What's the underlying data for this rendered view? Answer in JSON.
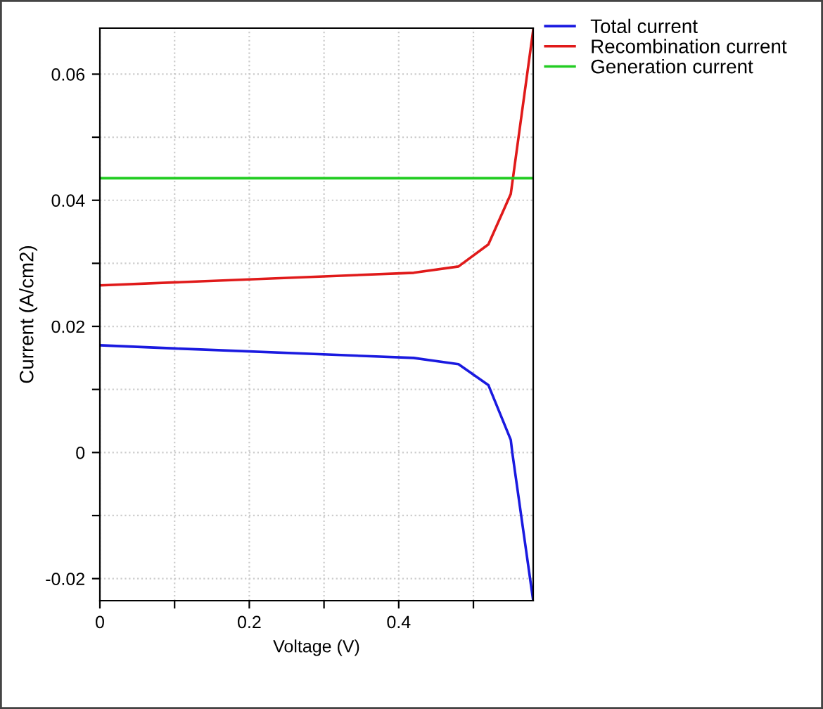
{
  "chart_data": {
    "type": "line",
    "xlabel": "Voltage (V)",
    "ylabel": "Current (A/cm2)",
    "xlim": [
      0,
      0.58
    ],
    "ylim": [
      -0.0235,
      0.0673
    ],
    "xticks": [
      0,
      {
        "value": 0.1,
        "label": null
      },
      0.2,
      {
        "value": 0.3,
        "label": null
      },
      0.4,
      {
        "value": 0.5,
        "label": null
      }
    ],
    "yticks": [
      -0.02,
      {
        "value": -0.01,
        "label": null
      },
      0,
      {
        "value": 0.01,
        "label": null
      },
      0.02,
      {
        "value": 0.03,
        "label": null
      },
      0.04,
      {
        "value": 0.05,
        "label": null
      },
      0.06
    ],
    "grid": true,
    "legend": "top right",
    "marker": "none",
    "line_style": "solid",
    "series": [
      {
        "name": "Total current",
        "color": "#1a1ae0",
        "x": [
          0,
          0.1,
          0.42,
          0.48,
          0.52,
          0.55,
          0.552,
          0.58
        ],
        "values": [
          0.017,
          0.0165,
          0.015,
          0.014,
          0.0107,
          0.002,
          0.0,
          -0.0235
        ]
      },
      {
        "name": "Recombination current",
        "color": "#e01a1a",
        "x": [
          0,
          0.42,
          0.48,
          0.52,
          0.55,
          0.58
        ],
        "values": [
          0.0265,
          0.0285,
          0.0295,
          0.033,
          0.041,
          0.067
        ]
      },
      {
        "name": "Generation current",
        "color": "#22cc22",
        "x": [
          0,
          0.58
        ],
        "values": [
          0.0435,
          0.0435
        ]
      }
    ]
  }
}
